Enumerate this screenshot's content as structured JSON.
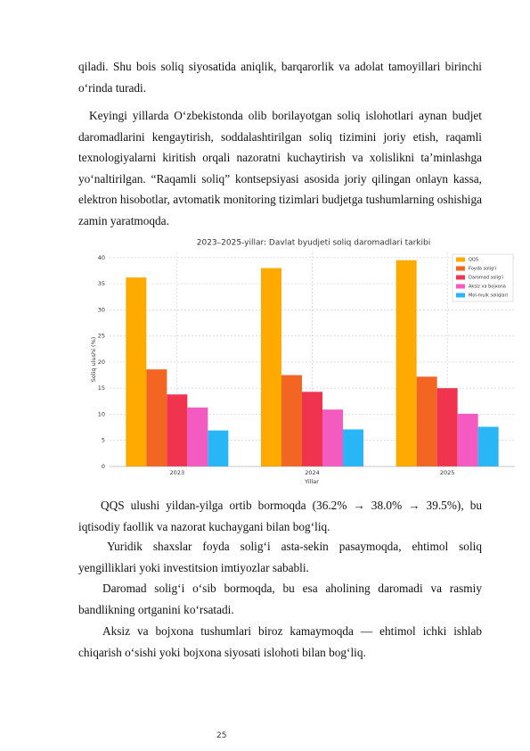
{
  "paragraphs": [
    "qiladi. Shu bois soliq siyosatida aniqlik, barqarorlik va adolat tamoyillari birinchi o‘rinda turadi.",
    "Keyingi yillarda O‘zbekistonda olib borilayotgan soliq islohotlari aynan budjet daromadlarini kengaytirish, soddalashtirilgan soliq tizimini joriy etish, raqamli texnologiyalarni kiritish orqali nazoratni kuchaytirish va xolislikni ta’minlashga yo‘naltirilgan. “Raqamli soliq” kontsepsiyasi asosida joriy qilingan onlayn kassa, elektron hisobotlar, avtomatik monitoring tizimlari budjetga tushumlarning oshishiga zamin yaratmoqda.",
    "QQS ulushi yildan-yilga ortib bormoqda (36.2% → 38.0% → 39.5%), bu iqtisodiy faollik va nazorat kuchaygani bilan bog‘liq.",
    "Yuridik shaxslar foyda solig‘i asta-sekin pasaymoqda, ehtimol soliq yengilliklari yoki investitsion imtiyozlar sababli.",
    "Daromad solig‘i o‘sib bormoqda, bu esa aholining daromadi va rasmiy bandlikning ortganini ko‘rsatadi.",
    "Aksiz va bojxona tushumlari biroz kamaymoqda — ehtimol ichki ishlab chiqarish o‘sishi yoki bojxona siyosati islohoti bilan bog‘liq."
  ],
  "chart_data": {
    "type": "bar",
    "title": "2023–2025-yillar: Davlat byudjeti soliq daromadlari tarkibi",
    "x_label": "Yillar",
    "y_label": "Soliq ulushi (%)",
    "categories": [
      "2023",
      "2024",
      "2025"
    ],
    "series": [
      {
        "name": "QQS",
        "color": "#ffaa00",
        "values": [
          36.2,
          38.0,
          39.5
        ]
      },
      {
        "name": "Foyda solig‘i",
        "color": "#f26522",
        "values": [
          18.6,
          17.5,
          17.2
        ]
      },
      {
        "name": "Daromad solig‘i",
        "color": "#f0344f",
        "values": [
          13.8,
          14.3,
          15.0
        ]
      },
      {
        "name": "Aksiz va bojxona",
        "color": "#f35bc0",
        "values": [
          11.3,
          10.9,
          10.1
        ]
      },
      {
        "name": "Mol-mulk soliqlari",
        "color": "#29b6f6",
        "values": [
          6.9,
          7.1,
          7.6
        ]
      }
    ],
    "ylim": [
      0,
      41
    ],
    "yticks": [
      0,
      5,
      10,
      15,
      20,
      25,
      30,
      35,
      40
    ],
    "grid": true,
    "legend": "upper right"
  },
  "page_number": "25"
}
